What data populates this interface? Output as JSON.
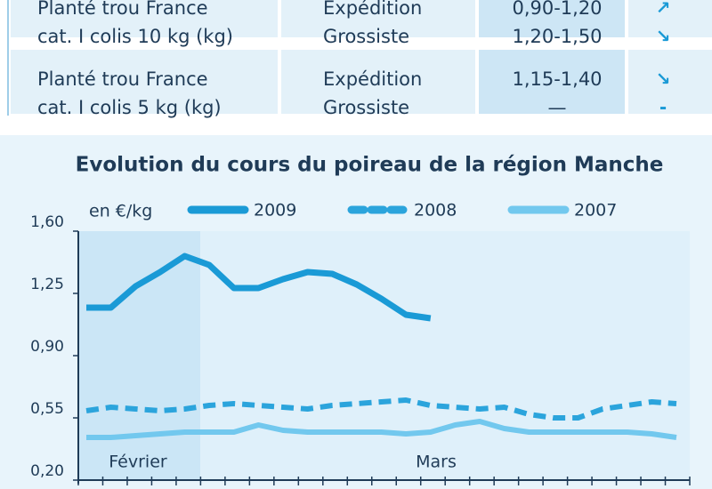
{
  "table": {
    "rows": [
      {
        "product": [
          "Planté trou France",
          "cat. I colis 10 kg (kg)"
        ],
        "market": [
          "Expédition",
          "Grossiste"
        ],
        "price": [
          "0,90-1,20",
          "1,20-1,50"
        ],
        "trend": [
          "↗",
          "↘"
        ]
      },
      {
        "product": [
          "Planté trou France",
          "cat. I colis 5 kg (kg)"
        ],
        "market": [
          "Expédition",
          "Grossiste"
        ],
        "price": [
          "1,15-1,40",
          "—"
        ],
        "trend": [
          "↘",
          "-"
        ]
      }
    ]
  },
  "chart_data": {
    "type": "line",
    "title": "Evolution du cours du poireau de la région Manche",
    "y_label": "en €/kg",
    "categories": [
      null,
      null,
      null,
      null,
      null,
      null,
      null,
      null,
      null,
      null,
      null,
      null,
      null,
      null,
      null,
      null,
      null,
      null,
      null,
      null,
      null,
      null,
      null,
      null,
      null
    ],
    "annotations": [
      "Février",
      "Mars"
    ],
    "series": [
      {
        "name": "2009",
        "color": "#1a9ad6",
        "style": "solid",
        "values": [
          1.17,
          1.17,
          1.29,
          1.37,
          1.46,
          1.41,
          1.28,
          1.28,
          1.33,
          1.37,
          1.36,
          1.3,
          1.22,
          1.13,
          1.11,
          null,
          null,
          null,
          null,
          null,
          null,
          null,
          null,
          null,
          null
        ]
      },
      {
        "name": "2008",
        "color": "#2ba4dc",
        "style": "dashed",
        "values": [
          0.59,
          0.61,
          0.6,
          0.59,
          0.6,
          0.62,
          0.63,
          0.62,
          0.61,
          0.6,
          0.62,
          0.63,
          0.64,
          0.65,
          0.62,
          0.61,
          0.6,
          0.61,
          0.57,
          0.55,
          0.55,
          0.6,
          0.62,
          0.64,
          0.63
        ]
      },
      {
        "name": "2007",
        "color": "#72c8ee",
        "style": "solid",
        "values": [
          0.44,
          0.44,
          0.45,
          0.46,
          0.47,
          0.47,
          0.47,
          0.51,
          0.48,
          0.47,
          0.47,
          0.47,
          0.47,
          0.46,
          0.47,
          0.51,
          0.53,
          0.49,
          0.47,
          0.47,
          0.47,
          0.47,
          0.47,
          0.46,
          0.44
        ]
      }
    ],
    "ylim": [
      0.2,
      1.6
    ],
    "yticks": [
      {
        "value": 0.2,
        "label": "0,20"
      },
      {
        "value": 0.55,
        "label": "0,55"
      },
      {
        "value": 0.9,
        "label": "0,90"
      },
      {
        "value": 1.25,
        "label": "1,25"
      },
      {
        "value": 1.6,
        "label": "1,60"
      }
    ],
    "grid": false
  }
}
